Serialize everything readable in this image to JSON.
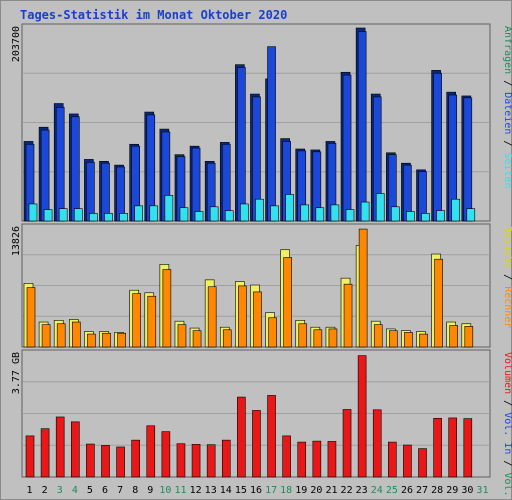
{
  "title": "Tages-Statistik im Monat Oktober 2020",
  "colors": {
    "background": "#c0c0c0",
    "panel_border": "#606060",
    "gridline": "#a0a0a0",
    "hits": "#1c48d8",
    "files": "#2a70e0",
    "pages": "#33e0ee",
    "visits": "#f0f060",
    "sites": "#ff8800",
    "kbytes": "#e81818",
    "weekend_label": "#1e8a5a",
    "weekday_label": "#000000"
  },
  "chart_data": [
    {
      "type": "bar",
      "name": "hits-files-pages",
      "y_max_label": "203700",
      "ylim": [
        0,
        203700
      ],
      "legend": [
        {
          "text": "Anfragen",
          "color": "#1e8a5a"
        },
        {
          "text": " / ",
          "color": "#000000"
        },
        {
          "text": "Dateien",
          "color": "#1c48d8"
        },
        {
          "text": " / ",
          "color": "#000000"
        },
        {
          "text": "Seiten",
          "color": "#33e0ee"
        }
      ],
      "series": [
        {
          "name": "Anfragen",
          "values": [
            84000,
            99000,
            124000,
            113000,
            65000,
            63000,
            59000,
            81000,
            115000,
            97000,
            70000,
            79000,
            63000,
            83000,
            165000,
            134000,
            150000,
            87000,
            76000,
            75000,
            84000,
            157000,
            203700,
            134000,
            72000,
            61000,
            54000,
            159000,
            136000,
            132000
          ]
        },
        {
          "name": "Dateien",
          "values": [
            81000,
            96000,
            120000,
            110000,
            62000,
            61000,
            57000,
            79000,
            112000,
            94000,
            68000,
            77000,
            61000,
            81000,
            162000,
            131000,
            184000,
            84000,
            74000,
            73000,
            82000,
            154000,
            200000,
            131000,
            70000,
            59000,
            52000,
            156000,
            133000,
            130000
          ]
        },
        {
          "name": "Seiten",
          "values": [
            18000,
            12000,
            13000,
            13000,
            8000,
            8000,
            8000,
            16000,
            16000,
            27000,
            14000,
            10000,
            15000,
            11000,
            18000,
            23000,
            16000,
            28000,
            17000,
            14000,
            17000,
            12000,
            20000,
            29000,
            15000,
            10000,
            8000,
            11000,
            23000,
            13000
          ]
        }
      ]
    },
    {
      "type": "bar",
      "name": "visits-sites",
      "y_max_label": "13826",
      "ylim": [
        0,
        13826
      ],
      "legend": [
        {
          "text": "Besuche",
          "color": "#d8d800"
        },
        {
          "text": " / ",
          "color": "#000000"
        },
        {
          "text": "Rechner",
          "color": "#ff8800"
        }
      ],
      "series": [
        {
          "name": "Besuche",
          "values": [
            7400,
            2900,
            3100,
            3200,
            1800,
            1800,
            1700,
            6600,
            6300,
            9600,
            3000,
            2200,
            7800,
            2300,
            7600,
            7200,
            4000,
            11300,
            3100,
            2300,
            2300,
            8000,
            11800,
            3000,
            2100,
            1900,
            1800,
            10800,
            2900,
            2700
          ]
        },
        {
          "name": "Rechner",
          "values": [
            6900,
            2600,
            2700,
            2900,
            1500,
            1600,
            1600,
            6200,
            5900,
            9000,
            2600,
            1900,
            7000,
            2000,
            7100,
            6400,
            3400,
            10400,
            2700,
            2000,
            2100,
            7300,
            13700,
            2600,
            1900,
            1700,
            1500,
            10200,
            2500,
            2400
          ]
        }
      ]
    },
    {
      "type": "bar",
      "name": "kbytes",
      "y_max_label": "3.77 GB",
      "ylim": [
        0,
        3.77
      ],
      "legend": [
        {
          "text": "Volumen",
          "color": "#e81818"
        },
        {
          "text": " / ",
          "color": "#000000"
        },
        {
          "text": "Vol. In",
          "color": "#1c48d8"
        },
        {
          "text": " / ",
          "color": "#000000"
        },
        {
          "text": "Vol. Out",
          "color": "#1e8a5a"
        }
      ],
      "series": [
        {
          "name": "Volumen",
          "values": [
            1.26,
            1.48,
            1.84,
            1.69,
            1.01,
            0.97,
            0.92,
            1.13,
            1.57,
            1.39,
            1.02,
            1.0,
            0.99,
            1.13,
            2.45,
            2.04,
            2.5,
            1.26,
            1.07,
            1.1,
            1.09,
            2.07,
            3.72,
            2.06,
            1.07,
            0.98,
            0.87,
            1.8,
            1.81,
            1.79
          ]
        }
      ]
    }
  ],
  "x_axis": {
    "labels": [
      "1",
      "2",
      "3",
      "4",
      "5",
      "6",
      "7",
      "8",
      "9",
      "10",
      "11",
      "12",
      "13",
      "14",
      "15",
      "16",
      "17",
      "18",
      "19",
      "20",
      "21",
      "22",
      "23",
      "24",
      "25",
      "26",
      "27",
      "28",
      "29",
      "30",
      "31"
    ],
    "weekend": [
      false,
      false,
      true,
      true,
      false,
      false,
      false,
      false,
      false,
      true,
      true,
      false,
      false,
      false,
      false,
      false,
      true,
      true,
      false,
      false,
      false,
      false,
      false,
      true,
      true,
      false,
      false,
      false,
      false,
      false,
      true
    ]
  }
}
